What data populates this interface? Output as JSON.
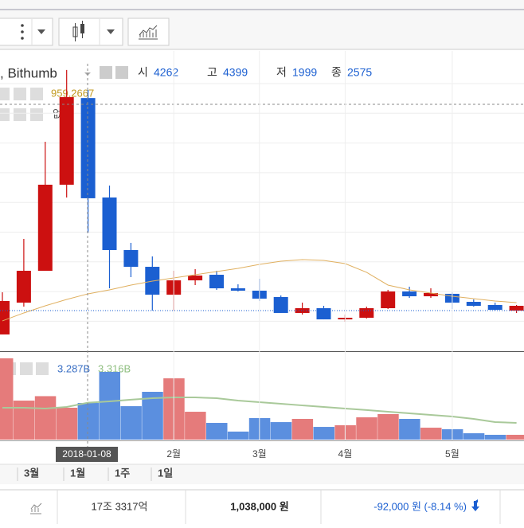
{
  "legend": {
    "name": ", Bithumb",
    "items": [
      {
        "label": "시",
        "value": "4262"
      },
      {
        "label": "고",
        "value": "4399"
      },
      {
        "label": "저",
        "value": "1999"
      },
      {
        "label": "종",
        "value": "2575"
      }
    ]
  },
  "indicator": {
    "value": "959.2667",
    "text": "없음"
  },
  "volume_legend": {
    "volume": "3.287B",
    "average": "3.316B"
  },
  "crosshair": {
    "date": "2018-01-08"
  },
  "periods": [
    "3월",
    "1월",
    "1주",
    "1일"
  ],
  "footer": {
    "amount": "17조 3317억",
    "price": "1,038,000 원",
    "change": "-92,000 원 (-8.14 %)"
  },
  "chart_data": {
    "type": "candlestick",
    "categories": [
      null,
      null,
      null,
      null,
      null,
      null,
      null,
      null,
      "2월",
      null,
      null,
      null,
      "3월",
      null,
      null,
      null,
      "4월",
      null,
      null,
      null,
      null,
      "5월",
      null,
      null,
      null
    ],
    "open": [
      282,
      818,
      1354,
      2803,
      4262,
      2588,
      1703,
      1421,
      952,
      1193,
      1287,
      1059,
      1019,
      912,
      644,
      724,
      536,
      563,
      724,
      1006,
      925,
      966,
      831,
      778,
      684
    ],
    "high": [
      992,
      1891,
      3527,
      4734,
      4399,
      2789,
      1824,
      1596,
      1354,
      1381,
      1354,
      1126,
      1220,
      939,
      818,
      764,
      617,
      750,
      1033,
      1086,
      1059,
      992,
      872,
      818,
      778
    ],
    "low": [
      282,
      751,
      1354,
      2588,
      1999,
      1059,
      1247,
      684,
      684,
      1113,
      1033,
      1006,
      845,
      644,
      617,
      536,
      496,
      550,
      711,
      898,
      898,
      711,
      750,
      684,
      644
    ],
    "close": [
      845,
      1354,
      2803,
      4278,
      2575,
      1703,
      1421,
      952,
      1193,
      1274,
      1059,
      1019,
      885,
      644,
      724,
      536,
      563,
      724,
      1006,
      925,
      979,
      818,
      764,
      697,
      764
    ],
    "moving_average": [
      510,
      644,
      764,
      872,
      966,
      1033,
      1113,
      1180,
      1234,
      1287,
      1341,
      1395,
      1462,
      1515,
      1542,
      1529,
      1475,
      1328,
      1113,
      1033,
      979,
      925,
      885,
      845,
      818
    ],
    "last_price": 684,
    "ylim": [
      0,
      4800
    ],
    "volume": [
      7.3,
      3.5,
      3.9,
      2.86,
      3.287,
      6.08,
      3.0,
      4.29,
      5.5,
      2.5,
      1.5,
      0.72,
      1.93,
      1.57,
      1.86,
      1.14,
      1.29,
      2.0,
      2.29,
      1.86,
      1.07,
      0.93,
      0.57,
      0.43,
      0.43
    ],
    "volume_average": [
      2.86,
      2.86,
      2.79,
      2.93,
      3.316,
      3.43,
      3.58,
      3.72,
      3.79,
      3.79,
      3.72,
      3.5,
      3.36,
      3.22,
      3.07,
      2.93,
      2.79,
      2.65,
      2.5,
      2.36,
      2.22,
      2.07,
      1.86,
      1.57,
      1.5
    ],
    "volume_ylim": [
      0,
      7.65
    ],
    "up_color": "#cc1010",
    "down_color": "#1b5fd1",
    "volume_up_color": "#e57b7b",
    "volume_down_color": "#5b8fdf",
    "ma_color": "#e0b060",
    "volume_ma_color": "#a9c99a",
    "grid": true
  }
}
